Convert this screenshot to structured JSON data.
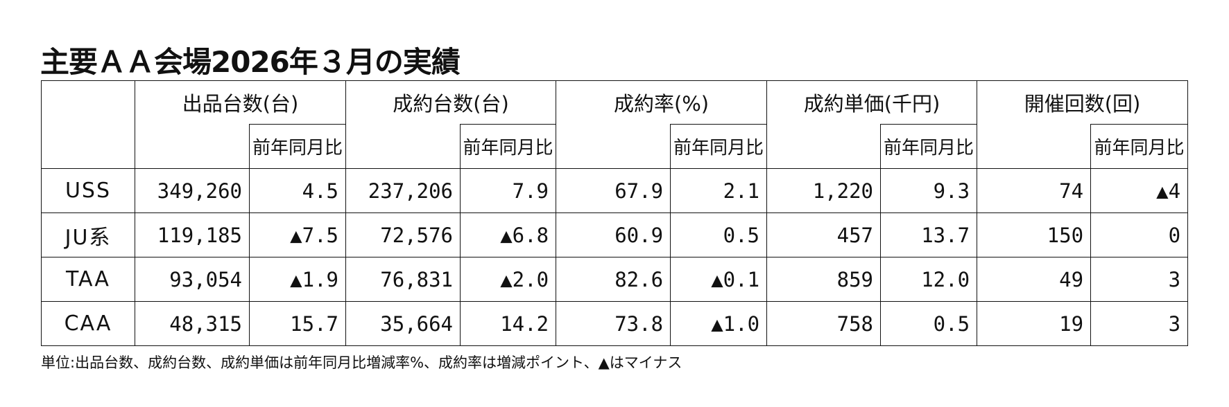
{
  "title": "主要ＡＡ会場2026年３月の実績",
  "table": {
    "groups": [
      {
        "label": "出品台数(台)",
        "sub": "前年同月比"
      },
      {
        "label": "成約台数(台)",
        "sub": "前年同月比"
      },
      {
        "label": "成約率(%)",
        "sub": "前年同月比"
      },
      {
        "label": "成約単価(千円)",
        "sub": "前年同月比"
      },
      {
        "label": "開催回数(回)",
        "sub": "前年同月比"
      }
    ],
    "rows": [
      [
        "USS",
        "349,260",
        "4.5",
        "237,206",
        "7.9",
        "67.9",
        "2.1",
        "1,220",
        "9.3",
        "74",
        "▲4"
      ],
      [
        "JU系",
        "119,185",
        "▲7.5",
        "72,576",
        "▲6.8",
        "60.9",
        "0.5",
        "457",
        "13.7",
        "150",
        "0"
      ],
      [
        "TAA",
        "93,054",
        "▲1.9",
        "76,831",
        "▲2.0",
        "82.6",
        "▲0.1",
        "859",
        "12.0",
        "49",
        "3"
      ],
      [
        "CAA",
        "48,315",
        "15.7",
        "35,664",
        "14.2",
        "73.8",
        "▲1.0",
        "758",
        "0.5",
        "19",
        "3"
      ]
    ]
  },
  "note": "単位:出品台数、成約台数、成約単価は前年同月比増減率%、成約率は増減ポイント、▲はマイナス"
}
